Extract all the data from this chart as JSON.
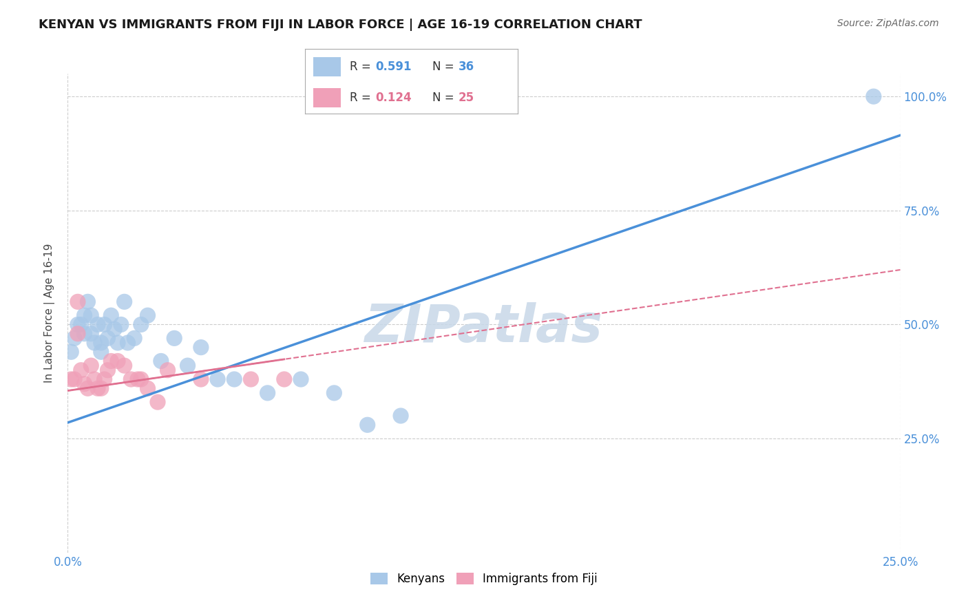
{
  "title": "KENYAN VS IMMIGRANTS FROM FIJI IN LABOR FORCE | AGE 16-19 CORRELATION CHART",
  "source": "Source: ZipAtlas.com",
  "ylabel": "In Labor Force | Age 16-19",
  "xlim": [
    0.0,
    0.25
  ],
  "ylim": [
    0.0,
    1.05
  ],
  "xticks": [
    0.0,
    0.05,
    0.1,
    0.15,
    0.2,
    0.25
  ],
  "yticks": [
    0.25,
    0.5,
    0.75,
    1.0
  ],
  "xtick_labels": [
    "0.0%",
    "",
    "",
    "",
    "",
    "25.0%"
  ],
  "ytick_labels_right": [
    "25.0%",
    "50.0%",
    "75.0%",
    "100.0%"
  ],
  "r_kenyan": 0.591,
  "n_kenyan": 36,
  "r_fiji": 0.124,
  "n_fiji": 25,
  "kenyan_x": [
    0.001,
    0.002,
    0.003,
    0.004,
    0.005,
    0.005,
    0.006,
    0.007,
    0.007,
    0.008,
    0.009,
    0.01,
    0.01,
    0.011,
    0.012,
    0.013,
    0.014,
    0.015,
    0.016,
    0.017,
    0.018,
    0.02,
    0.022,
    0.024,
    0.028,
    0.032,
    0.036,
    0.04,
    0.045,
    0.05,
    0.06,
    0.07,
    0.08,
    0.09,
    0.1,
    0.242
  ],
  "kenyan_y": [
    0.44,
    0.47,
    0.5,
    0.5,
    0.52,
    0.48,
    0.55,
    0.52,
    0.48,
    0.46,
    0.5,
    0.46,
    0.44,
    0.5,
    0.47,
    0.52,
    0.49,
    0.46,
    0.5,
    0.55,
    0.46,
    0.47,
    0.5,
    0.52,
    0.42,
    0.47,
    0.41,
    0.45,
    0.38,
    0.38,
    0.35,
    0.38,
    0.35,
    0.28,
    0.3,
    1.0
  ],
  "fiji_x": [
    0.001,
    0.002,
    0.003,
    0.003,
    0.004,
    0.005,
    0.006,
    0.007,
    0.008,
    0.009,
    0.01,
    0.011,
    0.012,
    0.013,
    0.015,
    0.017,
    0.019,
    0.021,
    0.022,
    0.024,
    0.027,
    0.03,
    0.04,
    0.055,
    0.065
  ],
  "fiji_y": [
    0.38,
    0.38,
    0.55,
    0.48,
    0.4,
    0.37,
    0.36,
    0.41,
    0.38,
    0.36,
    0.36,
    0.38,
    0.4,
    0.42,
    0.42,
    0.41,
    0.38,
    0.38,
    0.38,
    0.36,
    0.33,
    0.4,
    0.38,
    0.38,
    0.38
  ],
  "blue_line_x0": 0.0,
  "blue_line_y0": 0.285,
  "blue_line_x1": 0.25,
  "blue_line_y1": 0.915,
  "pink_line_x0": 0.0,
  "pink_line_y0": 0.355,
  "pink_line_x1": 0.25,
  "pink_line_y1": 0.62,
  "blue_color": "#4a90d9",
  "pink_color": "#e07090",
  "blue_scatter": "#a8c8e8",
  "pink_scatter": "#f0a0b8",
  "watermark": "ZIPatlas",
  "watermark_color": "#c8d8e8",
  "grid_color": "#cccccc",
  "background_color": "#ffffff"
}
